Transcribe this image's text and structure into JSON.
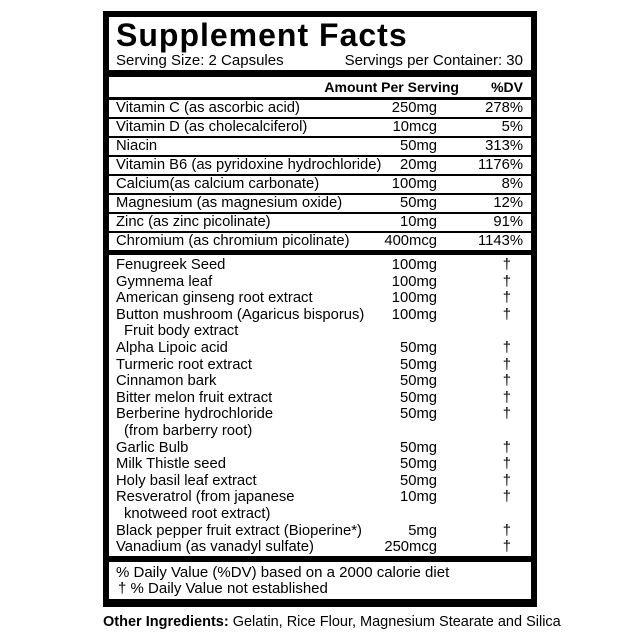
{
  "title": "Supplement Facts",
  "serving": {
    "size": "Serving Size: 2 Capsules",
    "per_container": "Servings per Container: 30"
  },
  "header": {
    "amount": "Amount Per Serving",
    "dv": "%DV"
  },
  "vitamin_rows": [
    {
      "name": "Vitamin C (as ascorbic acid)",
      "amount": "250mg",
      "dv": "278%"
    },
    {
      "name": "Vitamin D (as cholecalciferol)",
      "amount": "10mcg",
      "dv": "5%"
    },
    {
      "name": "Niacin",
      "amount": "50mg",
      "dv": "313%"
    },
    {
      "name": "Vitamin B6 (as pyridoxine hydrochloride)",
      "amount": "20mg",
      "dv": "1176%"
    },
    {
      "name": "Calcium(as calcium carbonate)",
      "amount": "100mg",
      "dv": "8%"
    },
    {
      "name": "Magnesium (as magnesium oxide)",
      "amount": "50mg",
      "dv": "12%"
    },
    {
      "name": "Zinc (as zinc picolinate)",
      "amount": "10mg",
      "dv": "91%"
    },
    {
      "name": "Chromium (as chromium picolinate)",
      "amount": "400mcg",
      "dv": "1143%"
    }
  ],
  "herbal_rows": [
    {
      "name": "Fenugreek Seed",
      "amount": "100mg",
      "dv": "†"
    },
    {
      "name": "Gymnema leaf",
      "amount": "100mg",
      "dv": "†"
    },
    {
      "name": "American ginseng root extract",
      "amount": "100mg",
      "dv": "†"
    },
    {
      "name": "Button mushroom (Agaricus bisporus)",
      "name2": "Fruit body extract",
      "amount": "100mg",
      "dv": "†"
    },
    {
      "name": "Alpha Lipoic acid",
      "amount": "50mg",
      "dv": "†"
    },
    {
      "name": "Turmeric root extract",
      "amount": "50mg",
      "dv": "†"
    },
    {
      "name": "Cinnamon bark",
      "amount": "50mg",
      "dv": "†"
    },
    {
      "name": "Bitter melon fruit extract",
      "amount": "50mg",
      "dv": "†"
    },
    {
      "name": "Berberine hydrochloride",
      "name2": "(from barberry root)",
      "amount": "50mg",
      "dv": "†"
    },
    {
      "name": "Garlic Bulb",
      "amount": "50mg",
      "dv": "†"
    },
    {
      "name": "Milk Thistle seed",
      "amount": "50mg",
      "dv": "†"
    },
    {
      "name": "Holy basil leaf extract",
      "amount": "50mg",
      "dv": "†"
    },
    {
      "name": "Resveratrol (from japanese",
      "name2": "knotweed root extract)",
      "amount": "10mg",
      "dv": "†"
    },
    {
      "name": "Black pepper fruit extract (Bioperine*)",
      "amount": "5mg",
      "dv": "†"
    },
    {
      "name": "Vanadium (as vanadyl sulfate)",
      "amount": "250mcg",
      "dv": "†"
    }
  ],
  "footnotes": [
    "% Daily Value (%DV) based on a 2000 calorie diet",
    "† % Daily Value not established"
  ],
  "other_ingredients": {
    "label": "Other Ingredients:",
    "text": " Gelatin, Rice Flour, Magnesium Stearate and Silica"
  },
  "colors": {
    "text": "#000000",
    "border": "#000000",
    "background": "#ffffff"
  }
}
